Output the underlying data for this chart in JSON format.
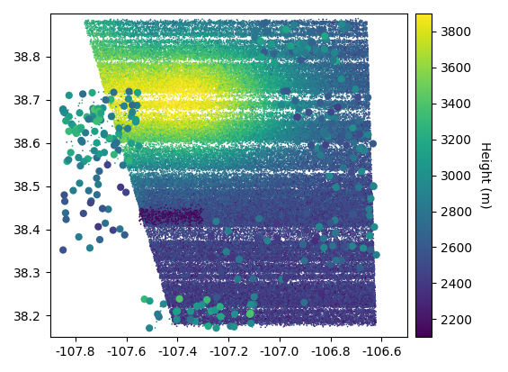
{
  "xlim": [
    -107.9,
    -106.5
  ],
  "ylim": [
    38.15,
    38.9
  ],
  "xticks": [
    -107.8,
    -107.6,
    -107.4,
    -107.2,
    -107.0,
    -106.8,
    -106.6
  ],
  "yticks": [
    38.2,
    38.3,
    38.4,
    38.5,
    38.6,
    38.7,
    38.8
  ],
  "colorbar_label": "Height (m)",
  "colorbar_ticks": [
    2200,
    2400,
    2600,
    2800,
    3000,
    3200,
    3400,
    3600,
    3800
  ],
  "vmin": 2100,
  "vmax": 3900,
  "cmap": "viridis",
  "figsize": [
    5.65,
    4.13
  ],
  "dpi": 100,
  "seed": 42
}
